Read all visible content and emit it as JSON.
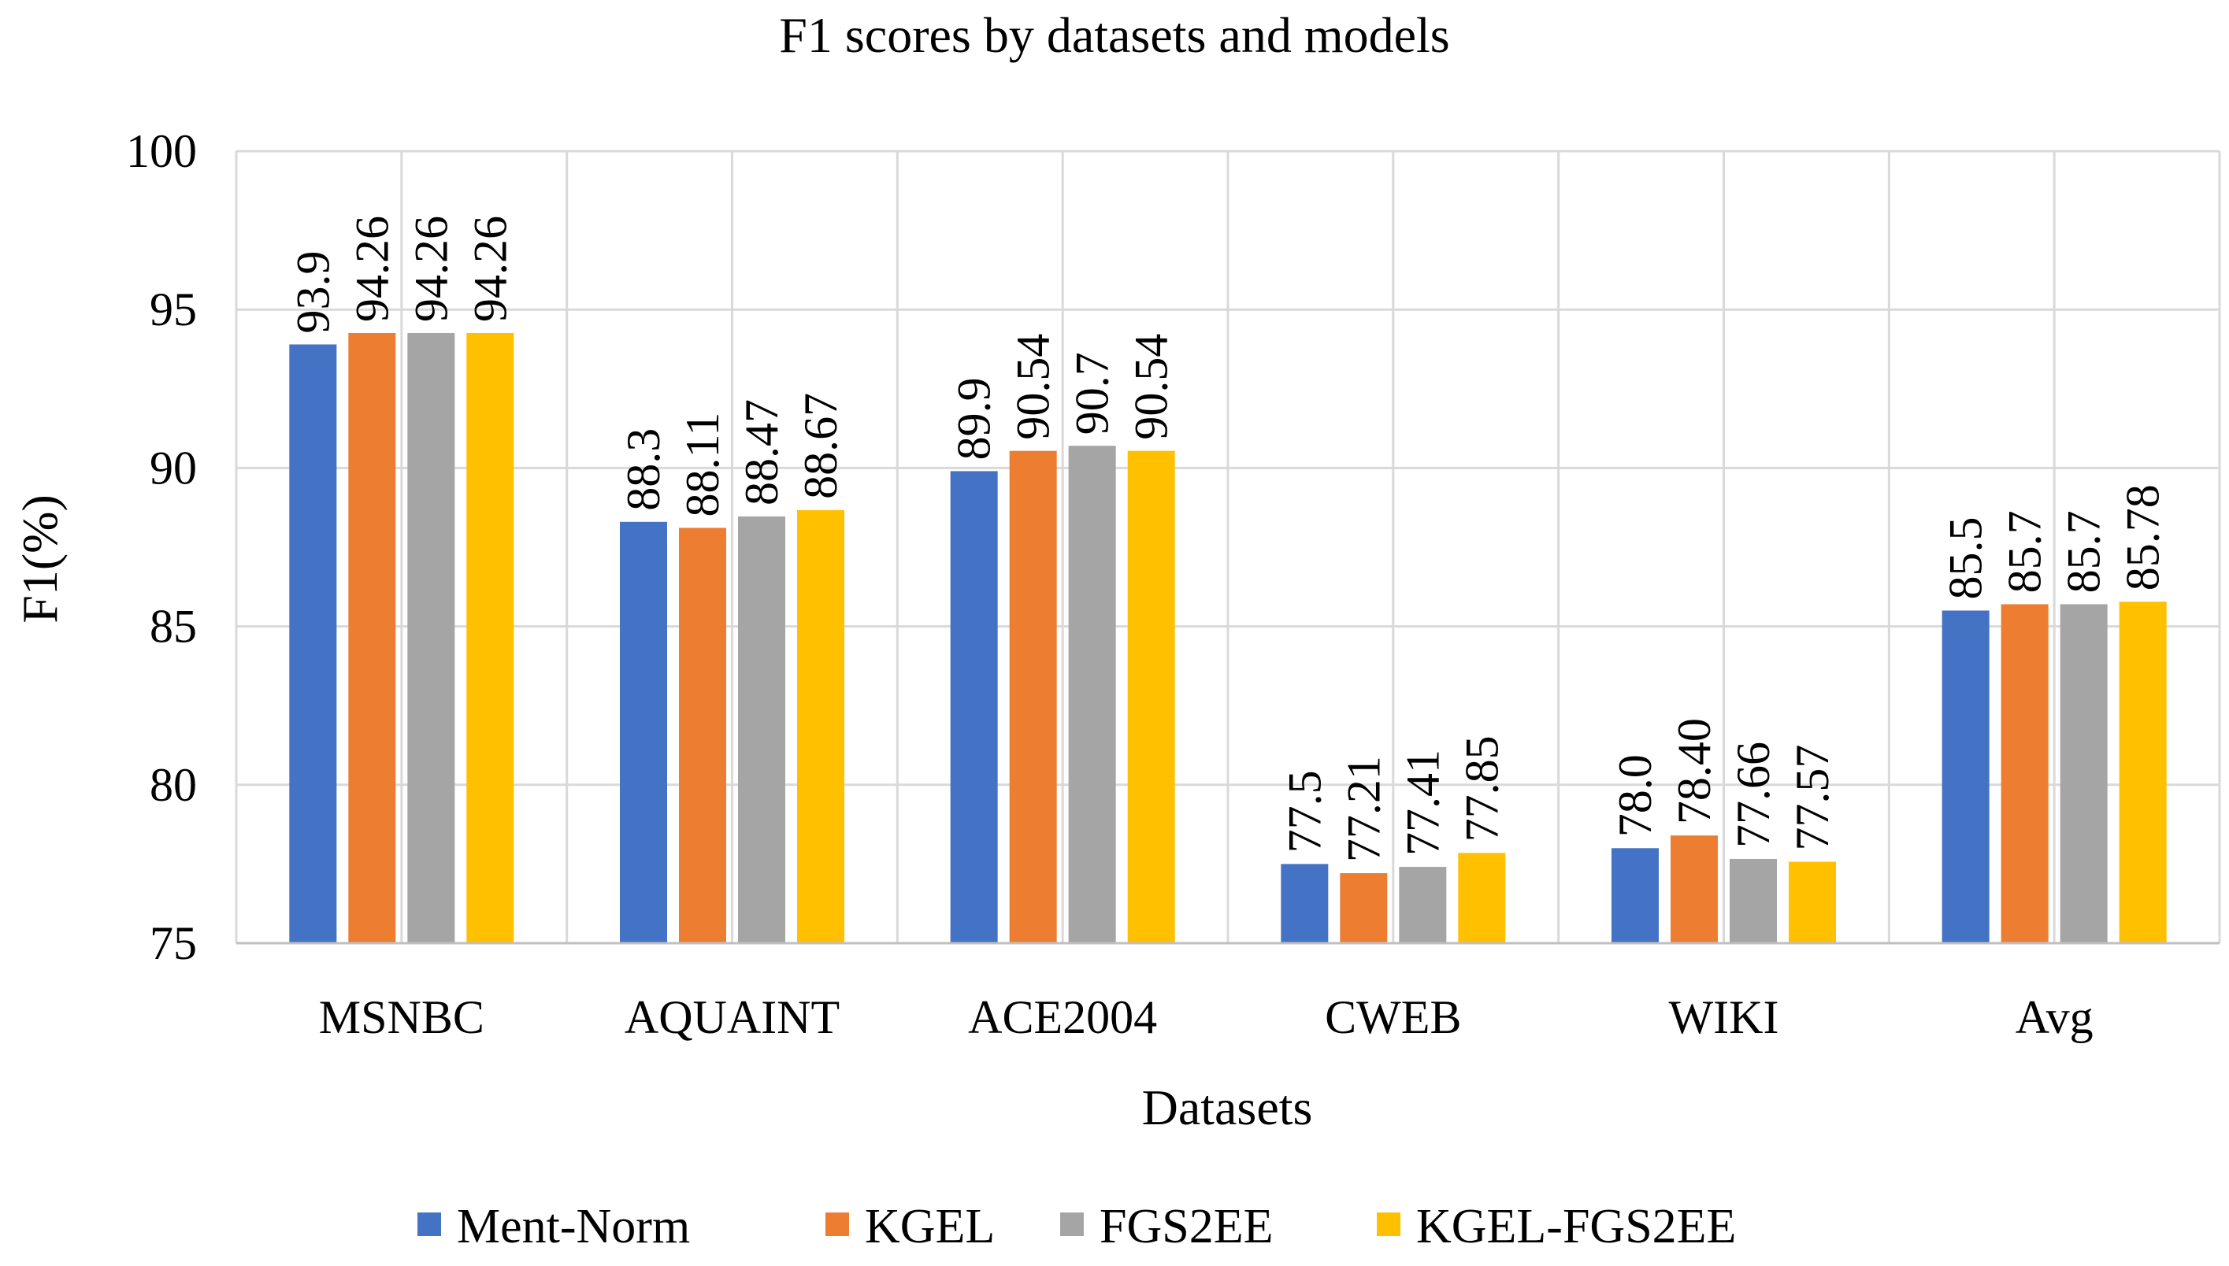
{
  "chart_data": {
    "type": "bar",
    "title": "F1 scores by datasets and models",
    "xlabel": "Datasets",
    "ylabel": "F1(%)",
    "ylim": [
      75,
      100
    ],
    "yticks": [
      75,
      80,
      85,
      90,
      95,
      100
    ],
    "grid": true,
    "legend_position": "bottom",
    "categories": [
      "MSNBC",
      "AQUAINT",
      "ACE2004",
      "CWEB",
      "WIKI",
      "Avg"
    ],
    "series": [
      {
        "name": "Ment-Norm",
        "color": "#4472C4",
        "values": [
          93.9,
          88.3,
          89.9,
          77.5,
          78.0,
          85.5
        ],
        "labels": [
          "93.9",
          "88.3",
          "89.9",
          "77.5",
          "78.0",
          "85.5"
        ]
      },
      {
        "name": "KGEL",
        "color": "#ED7D31",
        "values": [
          94.26,
          88.11,
          90.54,
          77.21,
          78.4,
          85.7
        ],
        "labels": [
          "94.26",
          "88.11",
          "90.54",
          "77.21",
          "78.40",
          "85.7"
        ]
      },
      {
        "name": "FGS2EE",
        "color": "#A5A5A5",
        "values": [
          94.26,
          88.47,
          90.7,
          77.41,
          77.66,
          85.7
        ],
        "labels": [
          "94.26",
          "88.47",
          "90.7",
          "77.41",
          "77.66",
          "85.7"
        ]
      },
      {
        "name": "KGEL-FGS2EE",
        "color": "#FFC000",
        "values": [
          94.26,
          88.67,
          90.54,
          77.85,
          77.57,
          85.78
        ],
        "labels": [
          "94.26",
          "88.67",
          "90.54",
          "77.85",
          "77.57",
          "85.78"
        ]
      }
    ]
  }
}
